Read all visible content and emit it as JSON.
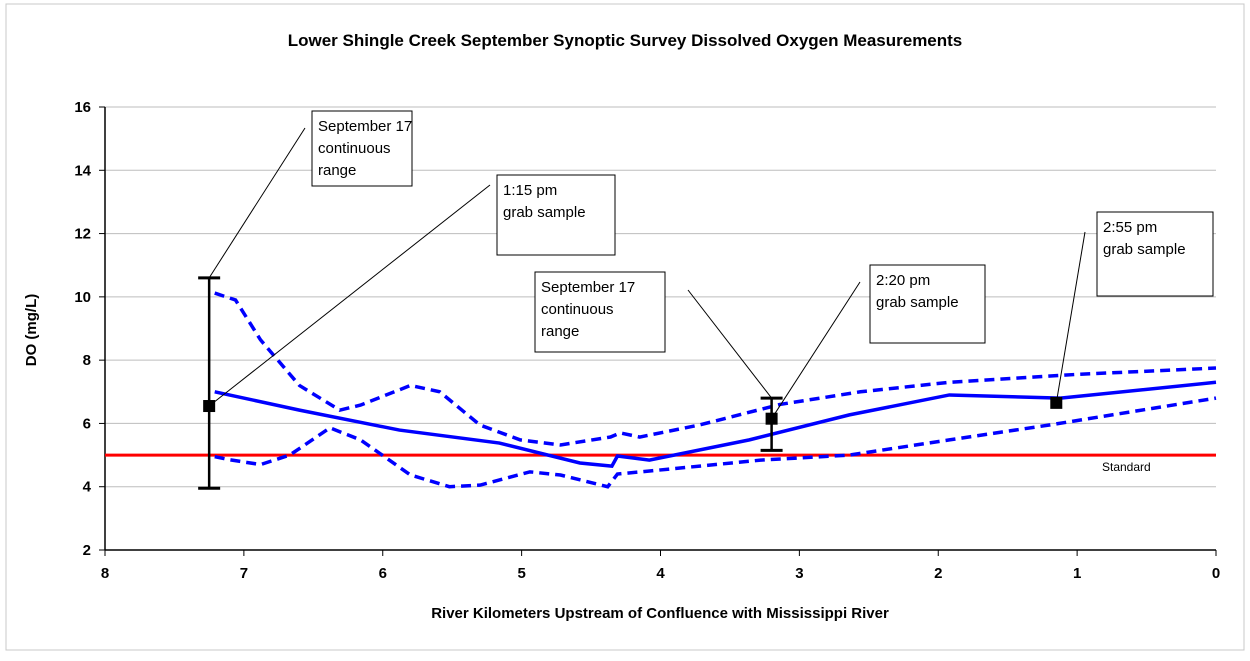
{
  "chart_data": {
    "type": "line",
    "title": "Lower Shingle Creek September Synoptic Survey Dissolved Oxygen Measurements",
    "xlabel": "River Kilometers Upstream of Confluence with Mississippi River",
    "ylabel": "DO (mg/L)",
    "xlim": [
      8,
      0
    ],
    "ylim": [
      2,
      16
    ],
    "xticks": [
      8,
      7,
      6,
      5,
      4,
      3,
      2,
      1,
      0
    ],
    "yticks": [
      2,
      4,
      6,
      8,
      10,
      12,
      14,
      16
    ],
    "grid": true,
    "series": [
      {
        "color": "#0000ff",
        "dashed": false,
        "x": [
          7.21,
          6.6,
          5.88,
          5.16,
          4.58,
          4.35,
          4.31,
          4.08,
          3.36,
          2.64,
          1.92,
          1.12,
          0
        ],
        "values": [
          7.0,
          6.42,
          5.79,
          5.38,
          4.75,
          4.65,
          4.97,
          4.84,
          5.48,
          6.27,
          6.9,
          6.8,
          7.3
        ]
      },
      {
        "color": "#0000ff",
        "dashed": true,
        "x": [
          7.21,
          7.06,
          6.88,
          6.6,
          6.31,
          6.16,
          5.8,
          5.59,
          5.3,
          5.01,
          4.72,
          4.36,
          4.29,
          4.15,
          3.72,
          3.14,
          2.56,
          1.92,
          1.0,
          0
        ],
        "values": [
          10.12,
          9.9,
          8.64,
          7.2,
          6.42,
          6.58,
          7.2,
          7.0,
          5.95,
          5.48,
          5.32,
          5.57,
          5.7,
          5.57,
          5.95,
          6.6,
          7.0,
          7.3,
          7.55,
          7.75
        ]
      },
      {
        "color": "#0000ff",
        "dashed": true,
        "x": [
          7.21,
          7.1,
          6.88,
          6.67,
          6.38,
          6.16,
          5.8,
          5.52,
          5.3,
          4.94,
          4.72,
          4.38,
          4.31,
          4.0,
          3.28,
          2.64,
          1.92,
          1.2,
          0
        ],
        "values": [
          4.95,
          4.85,
          4.7,
          5.0,
          5.86,
          5.48,
          4.37,
          4.0,
          4.05,
          4.47,
          4.37,
          4.0,
          4.4,
          4.53,
          4.84,
          5.0,
          5.48,
          5.95,
          6.8
        ]
      }
    ],
    "points": {
      "color": "#000000",
      "x": [
        7.25,
        3.2,
        1.15
      ],
      "values": [
        6.55,
        6.15,
        6.65
      ]
    },
    "ranges": {
      "color": "#000000",
      "x": [
        7.25,
        3.2
      ],
      "low": [
        3.95,
        5.15
      ],
      "high": [
        10.6,
        6.8
      ]
    },
    "standard": {
      "value": 5,
      "label": "Standard",
      "color": "#ff0000"
    },
    "annotations": [
      {
        "text": [
          "September 17",
          "continuous",
          "range"
        ]
      },
      {
        "text": [
          "1:15 pm",
          "grab sample"
        ]
      },
      {
        "text": [
          "September 17",
          "continuous",
          "range"
        ]
      },
      {
        "text": [
          "2:20 pm",
          "grab sample"
        ]
      },
      {
        "text": [
          "2:55 pm",
          "grab sample"
        ]
      }
    ]
  }
}
